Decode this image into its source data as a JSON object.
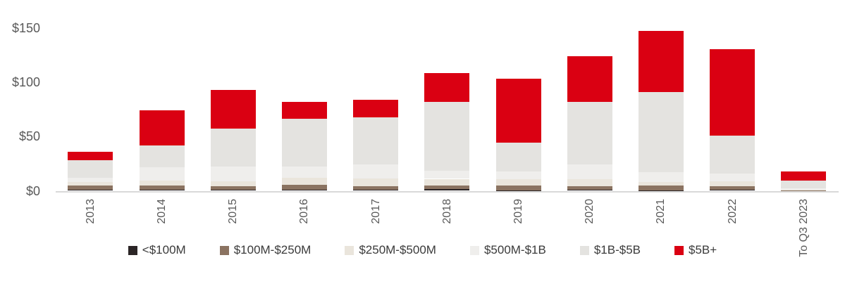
{
  "chart_data": {
    "type": "bar",
    "stacked": true,
    "title": "",
    "categories": [
      "2013",
      "2014",
      "2015",
      "2016",
      "2017",
      "2018",
      "2019",
      "2020",
      "2021",
      "2022",
      "To Q3 2023"
    ],
    "series": [
      {
        "name": "<$100M",
        "color": "#2b2526",
        "values": [
          1,
          1,
          1,
          1,
          1,
          1.5,
          0.5,
          1,
          0.5,
          1,
          0.2
        ]
      },
      {
        "name": "$100M-$250M",
        "color": "#8b7361",
        "values": [
          4,
          4,
          3.5,
          4.5,
          3,
          3.5,
          4.5,
          3.5,
          4.5,
          3.5,
          0.3
        ]
      },
      {
        "name": "$250M-$500M",
        "color": "#eae5dc",
        "values": [
          3,
          4.5,
          4.5,
          6.5,
          7.5,
          6,
          5.5,
          6,
          3,
          4,
          0.5
        ]
      },
      {
        "name": "$500M-$1B",
        "color": "#efeeec",
        "values": [
          4,
          12,
          13,
          10.5,
          12.5,
          7.5,
          7,
          14,
          9,
          7.5,
          1.5
        ]
      },
      {
        "name": "$1B-$5B",
        "color": "#e4e3e0",
        "values": [
          16,
          20,
          35.5,
          44,
          43.5,
          63,
          27,
          57,
          74,
          34.5,
          7
        ]
      },
      {
        "name": "$5B+",
        "color": "#da0012",
        "values": [
          8,
          32.5,
          35.5,
          15.5,
          16.5,
          26.5,
          58.5,
          42,
          56,
          79.5,
          8
        ]
      }
    ],
    "totals": [
      36,
      74,
      93,
      82,
      84,
      108,
      103,
      124,
      147,
      130,
      17.5
    ],
    "y_axis": {
      "ticks": [
        {
          "label": "$0",
          "value": 0
        },
        {
          "label": "$50",
          "value": 50
        },
        {
          "label": "$100",
          "value": 100
        },
        {
          "label": "$150",
          "value": 150
        }
      ],
      "max": 150
    },
    "xlabel": "",
    "ylabel": "",
    "grid": false,
    "legend_position": "bottom",
    "x_label_rotation": "90deg-counterclockwise"
  },
  "colors": {
    "axis_line": "#d9d9d9",
    "tick_label": "#595959",
    "legend_text": "#3a3a3a",
    "background": "#ffffff"
  }
}
